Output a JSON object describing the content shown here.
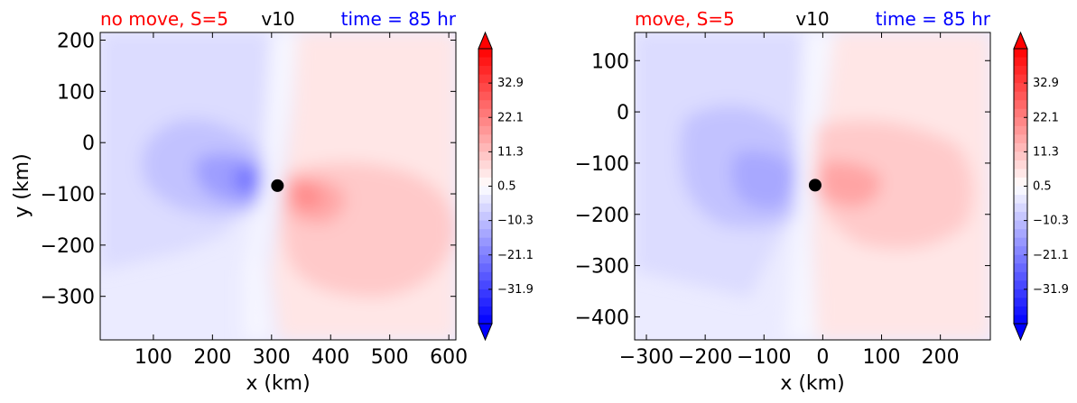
{
  "chart_data": [
    {
      "type": "heatmap",
      "title_left": "no move, S=5",
      "title_center": "v10",
      "title_right": "time = 85 hr",
      "xlabel": "x (km)",
      "ylabel": "y (km)",
      "xlim": [
        10,
        612
      ],
      "ylim": [
        -385,
        215
      ],
      "x_ticks": [
        100,
        200,
        300,
        400,
        500,
        600
      ],
      "y_ticks": [
        200,
        100,
        0,
        -100,
        -200,
        -300
      ],
      "x_tick_labels": [
        "100",
        "200",
        "300",
        "400",
        "500",
        "600"
      ],
      "y_tick_labels": [
        "200",
        "100",
        "0",
        "−100",
        "−200",
        "−300"
      ],
      "center_marker": {
        "x": 310,
        "y": -84
      },
      "colorbar": {
        "ticks": [
          32.9,
          22.1,
          11.3,
          0.5,
          -10.3,
          -21.1,
          -31.9
        ],
        "tick_labels": [
          "32.9",
          "22.1",
          "11.3",
          "0.5",
          "−10.3",
          "−21.1",
          "−31.9"
        ],
        "range": [
          -42.7,
          43.7
        ],
        "extend": "both",
        "colormap": "bwr"
      },
      "field_features": {
        "min_value": -28,
        "min_location": [
          285,
          -78
        ],
        "max_value": 19,
        "max_location": [
          345,
          -95
        ]
      }
    },
    {
      "type": "heatmap",
      "title_left": "move, S=5",
      "title_center": "v10",
      "title_right": "time = 85 hr",
      "xlabel": "x (km)",
      "ylabel": "",
      "xlim": [
        -320,
        285
      ],
      "ylim": [
        -445,
        155
      ],
      "x_ticks": [
        -300,
        -200,
        -100,
        0,
        100,
        200
      ],
      "y_ticks": [
        100,
        0,
        -100,
        -200,
        -300,
        -400
      ],
      "x_tick_labels": [
        "−300",
        "−200",
        "−100",
        "0",
        "100",
        "200"
      ],
      "y_tick_labels": [
        "100",
        "0",
        "−100",
        "−200",
        "−300",
        "−400"
      ],
      "center_marker": {
        "x": -13,
        "y": -143
      },
      "colorbar": {
        "ticks": [
          32.9,
          22.1,
          11.3,
          0.5,
          -10.3,
          -21.1,
          -31.9
        ],
        "tick_labels": [
          "32.9",
          "22.1",
          "11.3",
          "0.5",
          "−10.3",
          "−21.1",
          "−31.9"
        ],
        "range": [
          -42.7,
          43.7
        ],
        "extend": "both",
        "colormap": "bwr"
      },
      "field_features": {
        "min_value": -22,
        "min_location": [
          -80,
          -140
        ],
        "max_value": 16,
        "max_location": [
          50,
          -140
        ]
      }
    }
  ],
  "colors": {
    "title_left": "#ff0000",
    "title_center": "#000000",
    "title_right": "#0000ff",
    "marker": "#000000"
  }
}
